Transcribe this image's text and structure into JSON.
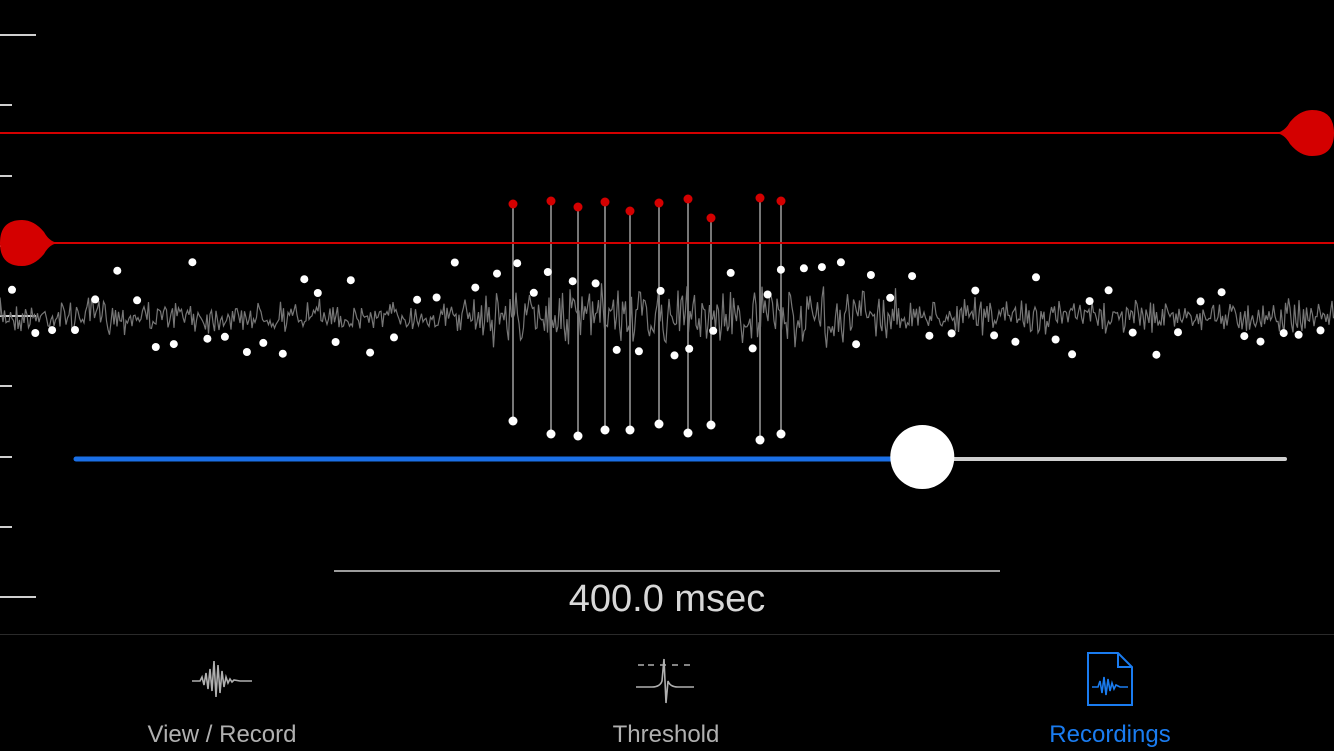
{
  "scale_bar": {
    "label": "400.0 msec"
  },
  "tabs": [
    {
      "label": "View / Record",
      "icon": "waveform-icon",
      "active": false
    },
    {
      "label": "Threshold",
      "icon": "threshold-spike-icon",
      "active": false
    },
    {
      "label": "Recordings",
      "icon": "recordings-file-icon",
      "active": true
    }
  ],
  "colors": {
    "background": "#000000",
    "threshold": "#d40000",
    "signal": "#777777",
    "slider_fill": "#1a6fe6",
    "slider_track": "#cfcfcf",
    "active_tab": "#1a7cf0",
    "inactive_tab": "#b0b0b0"
  },
  "slider": {
    "value": 0.7
  }
}
